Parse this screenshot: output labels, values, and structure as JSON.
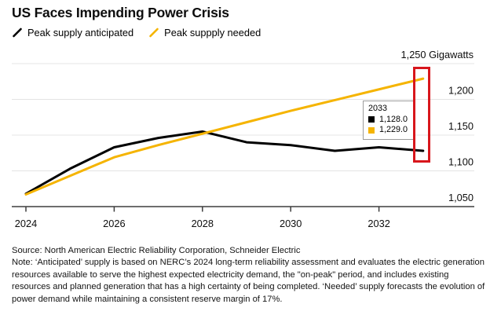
{
  "header": {
    "title": "US Faces Impending Power Crisis",
    "legend": [
      {
        "label": "Peak supply anticipated",
        "color": "#000000"
      },
      {
        "label": "Peak suppply needed",
        "color": "#f5b400"
      }
    ]
  },
  "chart_data": {
    "type": "line",
    "title": "US Faces Impending Power Crisis",
    "xlabel": "",
    "ylabel": "Gigawatts",
    "x": [
      2024,
      2025,
      2026,
      2027,
      2028,
      2029,
      2030,
      2031,
      2032,
      2033
    ],
    "series": [
      {
        "name": "Peak supply anticipated",
        "color": "#000000",
        "values": [
          1068,
          1103,
          1133,
          1146,
          1155,
          1140,
          1136,
          1128,
          1133,
          1128
        ]
      },
      {
        "name": "Peak suppply needed",
        "color": "#f5b400",
        "values": [
          1067,
          1093,
          1119,
          1136,
          1152,
          1168,
          1184,
          1199,
          1214,
          1229
        ]
      }
    ],
    "ylim": [
      1050,
      1250
    ],
    "yticks": [
      1050,
      1100,
      1150,
      1200,
      1250
    ],
    "ytick_labels": [
      "1,050",
      "1,100",
      "1,150",
      "1,200",
      "1,250 Gigawatts"
    ],
    "xticks": [
      2024,
      2026,
      2028,
      2030,
      2032
    ],
    "grid": true,
    "legend_position": "top-left",
    "annotation": {
      "type": "highlight-rectangle",
      "color": "#d8161c",
      "x_range": "2033 endpoints"
    }
  },
  "tooltip": {
    "year": "2033",
    "rows": [
      {
        "value": "1,128.0",
        "color": "#000000"
      },
      {
        "value": "1,229.0",
        "color": "#f5b400"
      }
    ]
  },
  "footer": {
    "source": "Source: North American Electric Reliability Corporation, Schneider Electric",
    "note": "Note: ‘Anticipated’ supply is based on NERC’s 2024 long-term reliability assessment and evaluates the electric generation resources available to serve the highest expected electricity demand, the \"on-peak\" period, and includes existing resources and planned generation that has a high certainty of being completed. ‘Needed’ supply forecasts the evolution of power demand while maintaining a consistent reserve margin of 17%."
  }
}
